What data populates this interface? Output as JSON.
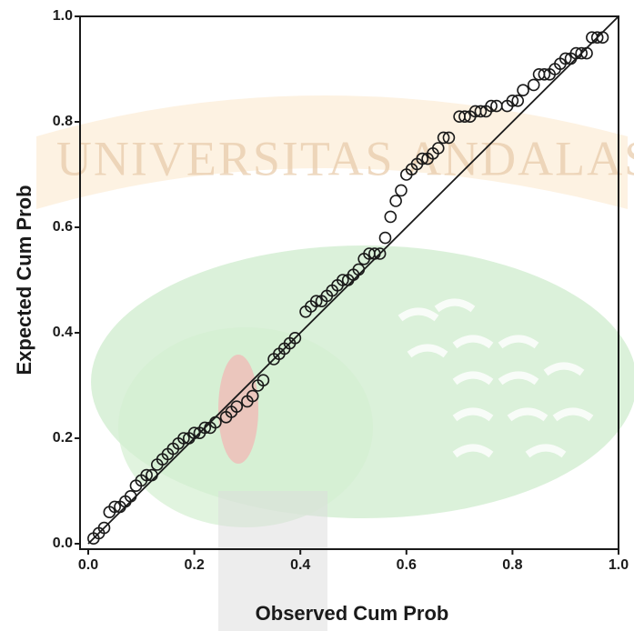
{
  "chart_data": {
    "type": "scatter",
    "watermark": "UNIVERSITAS ANDALAS",
    "x_label": "Observed Cum Prob",
    "y_label": "Expected Cum Prob",
    "xlim": [
      0,
      1
    ],
    "ylim": [
      0,
      1
    ],
    "xticks": [
      {
        "value": 0,
        "label": "0.0"
      },
      0.2,
      0.4,
      0.6,
      0.8,
      {
        "value": 1,
        "label": "1.0"
      }
    ],
    "yticks": [
      {
        "value": 0,
        "label": "0.0"
      },
      0.2,
      0.4,
      0.6,
      0.8,
      {
        "value": 1,
        "label": "1.0"
      }
    ],
    "reference_line": true,
    "color": "#1a1a1a",
    "x": [
      0.01,
      0.02,
      0.03,
      0.04,
      0.05,
      0.06,
      0.07,
      0.08,
      0.09,
      0.1,
      0.11,
      0.12,
      0.13,
      0.14,
      0.15,
      0.16,
      0.17,
      0.18,
      0.19,
      0.2,
      0.21,
      0.22,
      0.23,
      0.24,
      0.26,
      0.27,
      0.28,
      0.3,
      0.31,
      0.32,
      0.33,
      0.35,
      0.36,
      0.37,
      0.38,
      0.39,
      0.41,
      0.42,
      0.43,
      0.44,
      0.45,
      0.46,
      0.47,
      0.48,
      0.49,
      0.5,
      0.51,
      0.52,
      0.53,
      0.54,
      0.55,
      0.56,
      0.57,
      0.58,
      0.59,
      0.6,
      0.61,
      0.62,
      0.63,
      0.64,
      0.65,
      0.66,
      0.67,
      0.68,
      0.7,
      0.71,
      0.72,
      0.73,
      0.74,
      0.75,
      0.76,
      0.77,
      0.79,
      0.8,
      0.81,
      0.82,
      0.84,
      0.85,
      0.86,
      0.87,
      0.88,
      0.89,
      0.9,
      0.91,
      0.92,
      0.93,
      0.94,
      0.95,
      0.96,
      0.97
    ],
    "values": [
      0.01,
      0.02,
      0.03,
      0.06,
      0.07,
      0.07,
      0.08,
      0.09,
      0.11,
      0.12,
      0.13,
      0.13,
      0.15,
      0.16,
      0.17,
      0.18,
      0.19,
      0.2,
      0.2,
      0.21,
      0.21,
      0.22,
      0.22,
      0.23,
      0.24,
      0.25,
      0.26,
      0.27,
      0.28,
      0.3,
      0.31,
      0.35,
      0.36,
      0.37,
      0.38,
      0.39,
      0.44,
      0.45,
      0.46,
      0.46,
      0.47,
      0.48,
      0.49,
      0.5,
      0.5,
      0.51,
      0.52,
      0.54,
      0.55,
      0.55,
      0.55,
      0.58,
      0.62,
      0.65,
      0.67,
      0.7,
      0.71,
      0.72,
      0.73,
      0.73,
      0.74,
      0.75,
      0.77,
      0.77,
      0.81,
      0.81,
      0.81,
      0.82,
      0.82,
      0.82,
      0.83,
      0.83,
      0.83,
      0.84,
      0.84,
      0.86,
      0.87,
      0.89,
      0.89,
      0.89,
      0.9,
      0.91,
      0.92,
      0.92,
      0.93,
      0.93,
      0.93,
      0.96,
      0.96,
      0.96
    ]
  }
}
